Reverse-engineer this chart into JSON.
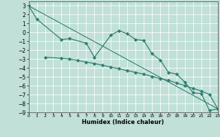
{
  "xlabel": "Humidex (Indice chaleur)",
  "bg_color": "#c0e0d8",
  "grid_color": "#ffffff",
  "line_color": "#2e7d6e",
  "xlim": [
    0,
    23
  ],
  "ylim": [
    -9,
    3.5
  ],
  "xticks": [
    0,
    1,
    2,
    3,
    4,
    5,
    6,
    7,
    8,
    9,
    10,
    11,
    12,
    13,
    14,
    15,
    16,
    17,
    18,
    19,
    20,
    21,
    22,
    23
  ],
  "yticks": [
    3,
    2,
    1,
    0,
    -1,
    -2,
    -3,
    -4,
    -5,
    -6,
    -7,
    -8,
    -9
  ],
  "series1_x": [
    0,
    1,
    4,
    5,
    7,
    8,
    10,
    11,
    12,
    13,
    14,
    15,
    16,
    17,
    18,
    19,
    20,
    21,
    22,
    23
  ],
  "series1_y": [
    3.0,
    1.5,
    -0.8,
    -0.7,
    -1.2,
    -2.8,
    -0.3,
    0.2,
    -0.15,
    -0.8,
    -0.9,
    -2.4,
    -3.1,
    -4.5,
    -4.7,
    -5.6,
    -6.8,
    -6.9,
    -8.8,
    -8.6
  ],
  "series2_x": [
    2,
    4,
    5,
    6,
    7,
    8,
    9,
    10,
    11,
    12,
    13,
    14,
    15,
    16,
    17,
    18,
    19,
    20,
    21,
    22,
    23
  ],
  "series2_y": [
    -2.8,
    -2.9,
    -3.0,
    -3.15,
    -3.35,
    -3.5,
    -3.7,
    -3.9,
    -4.1,
    -4.3,
    -4.5,
    -4.7,
    -4.95,
    -5.2,
    -5.4,
    -5.7,
    -6.0,
    -6.3,
    -6.6,
    -7.0,
    -8.6
  ],
  "series3_x": [
    0,
    23
  ],
  "series3_y": [
    3.0,
    -8.6
  ]
}
